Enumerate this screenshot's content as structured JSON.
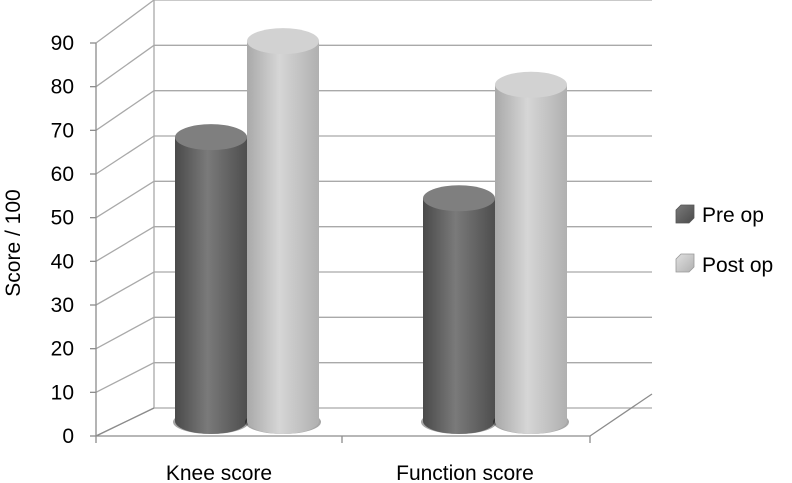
{
  "chart_data": {
    "type": "bar",
    "style": "3d-cylinder",
    "categories": [
      "Knee score",
      "Function score"
    ],
    "series": [
      {
        "name": "Pre op",
        "values": [
          65,
          51
        ],
        "color": "#6d6d6d"
      },
      {
        "name": "Post op",
        "values": [
          87,
          77
        ],
        "color": "#c4c4c4"
      }
    ],
    "ylabel": "Score / 100",
    "ylim": [
      0,
      90
    ],
    "yticks": [
      "0",
      "10",
      "20",
      "30",
      "40",
      "50",
      "60",
      "70",
      "80",
      "90"
    ],
    "grid": true,
    "legend": "right"
  }
}
